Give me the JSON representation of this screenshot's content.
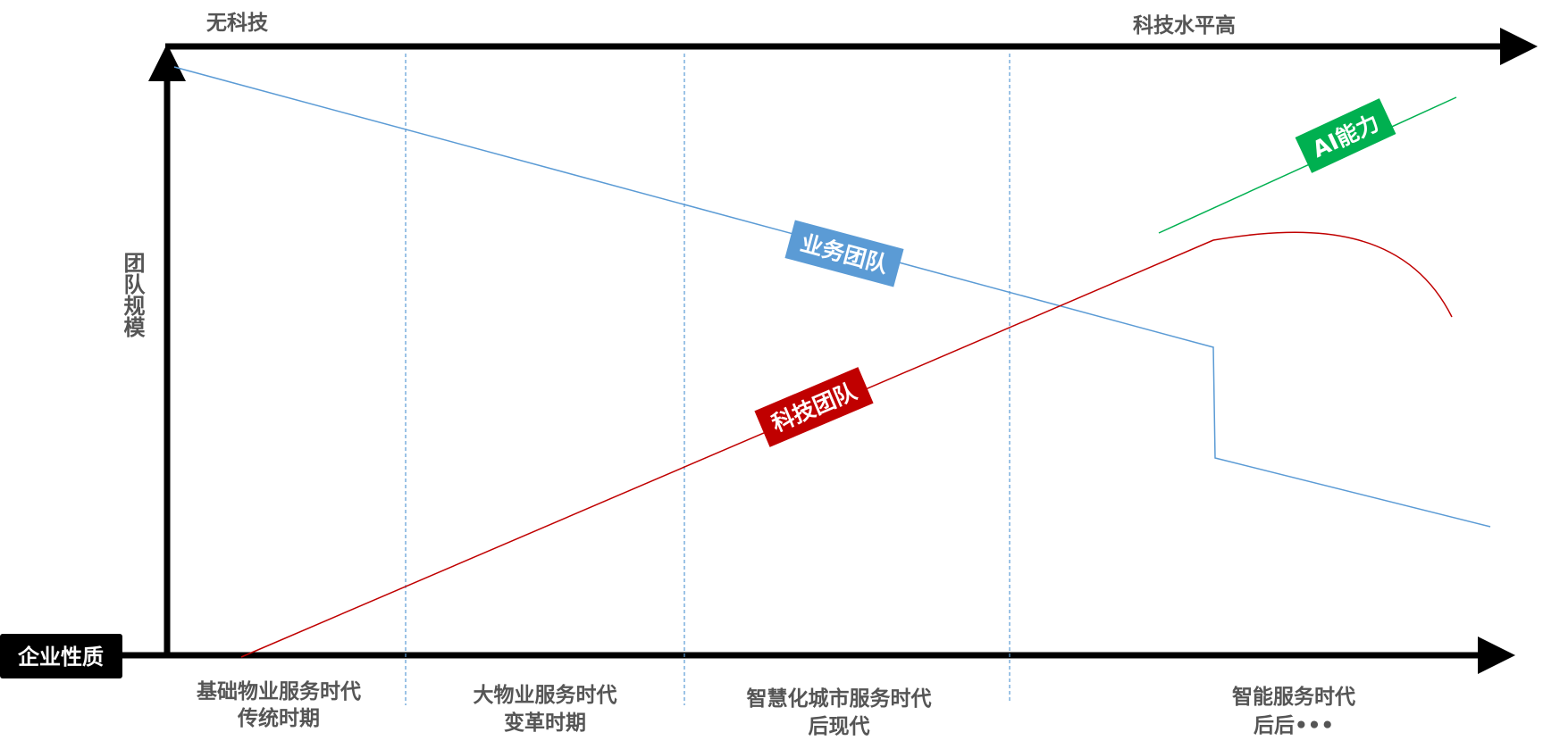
{
  "top_axis": {
    "left_label": "无科技",
    "right_label": "科技水平高"
  },
  "y_axis_label": "团队规模",
  "x_axis_label": "企业性质",
  "eras": [
    {
      "line1": "基础物业服务时代",
      "line2": "传统时期"
    },
    {
      "line1": "大物业服务时代",
      "line2": "变革时期"
    },
    {
      "line1": "智慧化城市服务时代",
      "line2": "后现代"
    },
    {
      "line1": "智能服务时代",
      "line2": "后后•••"
    }
  ],
  "series": {
    "business": {
      "label": "业务团队",
      "color": "#5b9bd5"
    },
    "tech": {
      "label": "科技团队",
      "color": "#c00000"
    },
    "ai": {
      "label": "AI能力",
      "color": "#00b050"
    }
  },
  "colors": {
    "axis": "#000000",
    "divider": "#5b9bd5",
    "text": "#555555"
  }
}
